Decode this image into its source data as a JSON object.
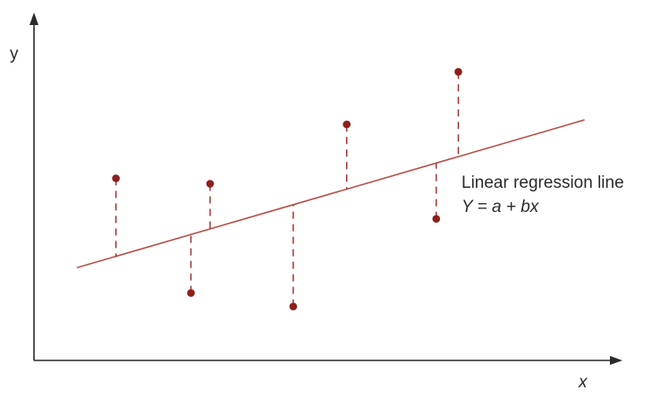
{
  "axes": {
    "x_label": "x",
    "y_label": "y"
  },
  "annotation": {
    "line1": "Linear regression line",
    "line2": "Y = a + bx"
  },
  "colors": {
    "axis": "#2a2a2a",
    "regression_line": "#b5514a",
    "residual": "#9b2a24",
    "point": "#8e1f1b"
  },
  "chart_data": {
    "type": "scatter",
    "x_range": [
      0,
      10
    ],
    "y_range": [
      0,
      10
    ],
    "regression": {
      "a": 2.38,
      "b": 0.502
    },
    "points": [
      {
        "x": 1.41,
        "y": 5.4
      },
      {
        "x": 2.7,
        "y": 2.0
      },
      {
        "x": 3.03,
        "y": 5.24
      },
      {
        "x": 4.46,
        "y": 1.6
      },
      {
        "x": 5.38,
        "y": 7.0
      },
      {
        "x": 6.92,
        "y": 4.2
      },
      {
        "x": 7.3,
        "y": 8.56
      }
    ]
  }
}
